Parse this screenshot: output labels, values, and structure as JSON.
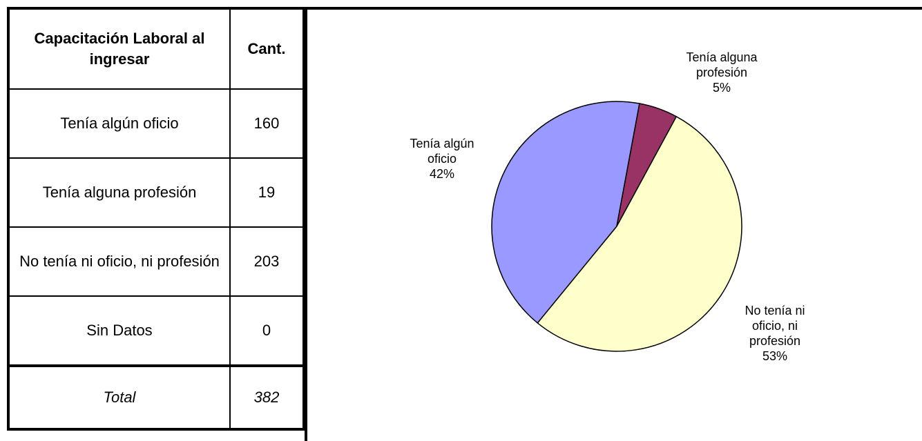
{
  "table": {
    "header": [
      "Capacitación Laboral al ingresar",
      "Cant."
    ],
    "rows": [
      [
        "Tenía algún oficio",
        "160"
      ],
      [
        "Tenía alguna profesión",
        "19"
      ],
      [
        "No tenía ni oficio, ni profesión",
        "203"
      ],
      [
        "Sin Datos",
        "0"
      ]
    ],
    "total": [
      "Total",
      "382"
    ]
  },
  "chart_data": {
    "type": "pie",
    "categories": [
      "Tenía algún oficio",
      "Tenía alguna profesión",
      "No tenía ni oficio, ni profesión"
    ],
    "values": [
      42,
      5,
      53
    ],
    "value_labels": [
      "42%",
      "5%",
      "53%"
    ],
    "colors": [
      "#9999ff",
      "#993366",
      "#ffffcc"
    ]
  }
}
